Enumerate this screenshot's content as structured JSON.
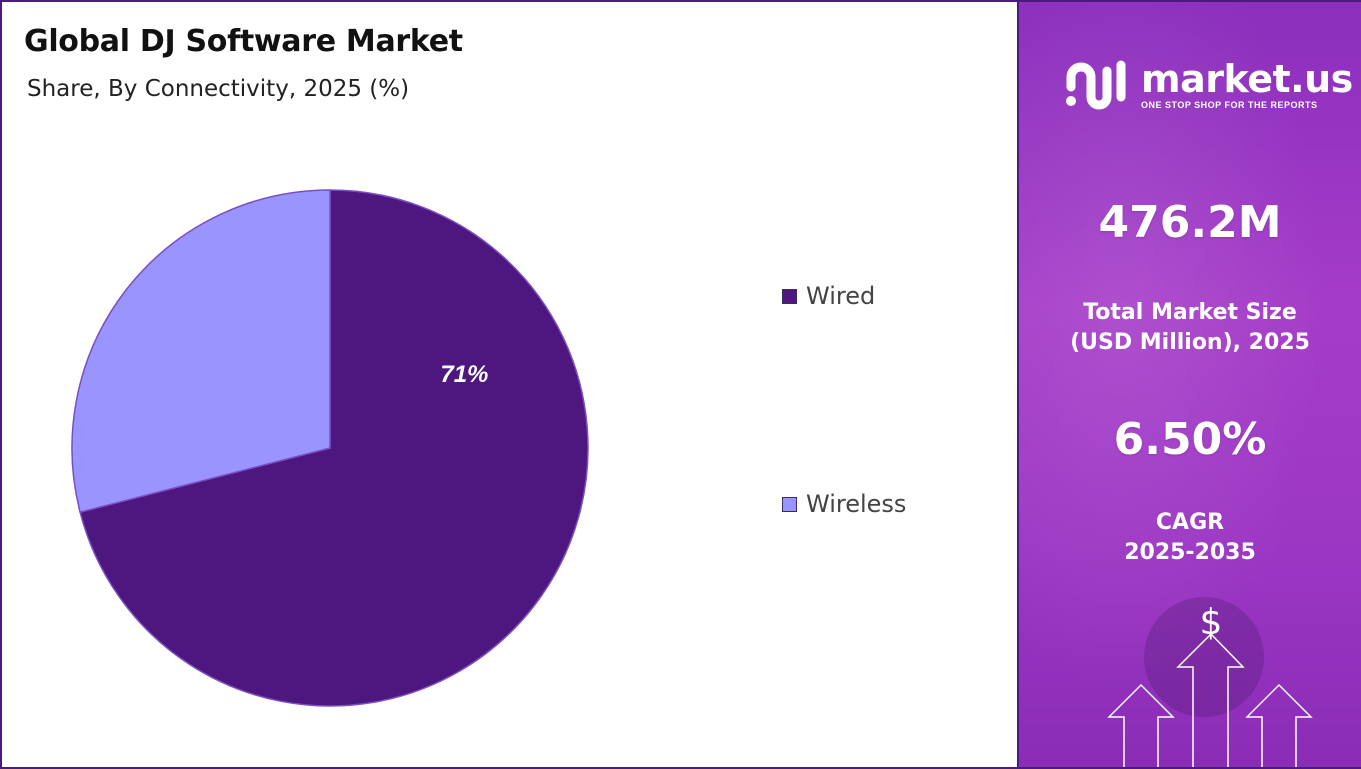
{
  "title": "Global DJ Software Market",
  "subtitle": "Share, By Connectivity, 2025 (%)",
  "chart_data": {
    "type": "pie",
    "title": "Global DJ Software Market",
    "subtitle": "Share, By Connectivity, 2025 (%)",
    "categories": [
      "Wired",
      "Wireless"
    ],
    "values": [
      71,
      29
    ],
    "data_labels": [
      "71%",
      ""
    ],
    "colors": [
      "#4e177f",
      "#9a94ff"
    ],
    "legend_position": "right"
  },
  "legend": {
    "items": [
      {
        "label": "Wired",
        "color": "#4e177f"
      },
      {
        "label": "Wireless",
        "color": "#9a94ff"
      }
    ]
  },
  "panel": {
    "logo_name": "market.us",
    "logo_tagline": "ONE STOP SHOP FOR THE REPORTS",
    "market_size_value": "476.2M",
    "market_size_label_line1": "Total Market Size",
    "market_size_label_line2": "(USD Million), 2025",
    "cagr_value": "6.50%",
    "cagr_label_line1": "CAGR",
    "cagr_label_line2": "2025-2035",
    "dollar_symbol": "$",
    "colors": {
      "panel_top": "#8b2fbd",
      "panel_mid": "#a53cc8",
      "border": "#4b1a7e"
    }
  }
}
